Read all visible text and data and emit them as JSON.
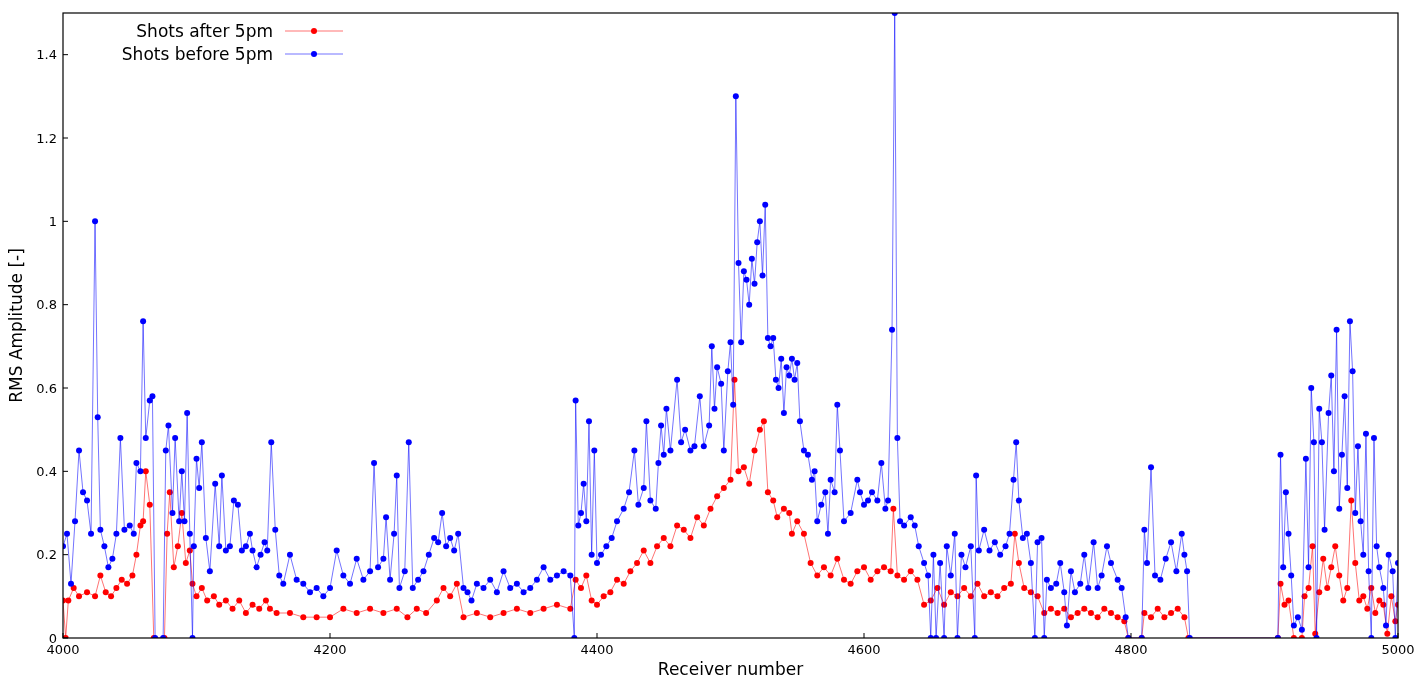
{
  "chart_data": {
    "type": "line",
    "xlabel": "Receiver number",
    "ylabel": "RMS Amplitude [-]",
    "xlim": [
      4000,
      5000
    ],
    "xticks": [
      4000,
      4200,
      4400,
      4600,
      4800,
      5000
    ],
    "ylim": [
      0,
      1.5
    ],
    "yticks": [
      0,
      0.2,
      0.4,
      0.6,
      0.8,
      1,
      1.2,
      1.4
    ],
    "grid": false,
    "legend": "top left",
    "marker": "circle",
    "line_style": "solid",
    "series": [
      {
        "name": "Shots after 5pm",
        "color": "#ff0000",
        "x": [
          4000,
          4002,
          4004,
          4008,
          4012,
          4018,
          4024,
          4028,
          4032,
          4036,
          4040,
          4044,
          4048,
          4052,
          4055,
          4058,
          4060,
          4062,
          4065,
          4068,
          4076,
          4078,
          4080,
          4083,
          4086,
          4089,
          4092,
          4095,
          4097,
          4100,
          4104,
          4108,
          4113,
          4117,
          4122,
          4127,
          4132,
          4137,
          4142,
          4147,
          4152,
          4155,
          4160,
          4170,
          4180,
          4190,
          4200,
          4210,
          4220,
          4230,
          4240,
          4250,
          4258,
          4265,
          4272,
          4280,
          4285,
          4290,
          4295,
          4300,
          4310,
          4320,
          4330,
          4340,
          4350,
          4360,
          4370,
          4380,
          4384,
          4388,
          4392,
          4396,
          4400,
          4405,
          4410,
          4415,
          4420,
          4425,
          4430,
          4435,
          4440,
          4445,
          4450,
          4455,
          4460,
          4465,
          4470,
          4475,
          4480,
          4485,
          4490,
          4495,
          4500,
          4503,
          4506,
          4510,
          4514,
          4518,
          4522,
          4525,
          4528,
          4532,
          4535,
          4540,
          4544,
          4546,
          4550,
          4555,
          4560,
          4565,
          4570,
          4575,
          4580,
          4585,
          4590,
          4595,
          4600,
          4605,
          4610,
          4615,
          4620,
          4622,
          4625,
          4630,
          4635,
          4640,
          4645,
          4650,
          4655,
          4660,
          4665,
          4670,
          4675,
          4680,
          4685,
          4690,
          4695,
          4700,
          4705,
          4710,
          4713,
          4716,
          4720,
          4725,
          4730,
          4735,
          4740,
          4745,
          4750,
          4755,
          4760,
          4765,
          4770,
          4775,
          4780,
          4785,
          4790,
          4795,
          4798,
          4808,
          4810,
          4815,
          4820,
          4825,
          4830,
          4835,
          4840,
          4843,
          4910,
          4912,
          4915,
          4918,
          4922,
          4928,
          4930,
          4933,
          4936,
          4938,
          4941,
          4944,
          4947,
          4950,
          4953,
          4956,
          4959,
          4962,
          4965,
          4968,
          4971,
          4974,
          4977,
          4980,
          4983,
          4986,
          4989,
          4992,
          4995,
          4998,
          5000
        ],
        "values": [
          0.09,
          0,
          0.09,
          0.12,
          0.1,
          0.11,
          0.1,
          0.15,
          0.11,
          0.1,
          0.12,
          0.14,
          0.13,
          0.15,
          0.2,
          0.27,
          0.28,
          0.4,
          0.32,
          0,
          0,
          0.25,
          0.35,
          0.17,
          0.22,
          0.3,
          0.18,
          0.21,
          0.13,
          0.1,
          0.12,
          0.09,
          0.1,
          0.08,
          0.09,
          0.07,
          0.09,
          0.06,
          0.08,
          0.07,
          0.09,
          0.07,
          0.06,
          0.06,
          0.05,
          0.05,
          0.05,
          0.07,
          0.06,
          0.07,
          0.06,
          0.07,
          0.05,
          0.07,
          0.06,
          0.09,
          0.12,
          0.1,
          0.13,
          0.05,
          0.06,
          0.05,
          0.06,
          0.07,
          0.06,
          0.07,
          0.08,
          0.07,
          0.14,
          0.12,
          0.15,
          0.09,
          0.08,
          0.1,
          0.11,
          0.14,
          0.13,
          0.16,
          0.18,
          0.21,
          0.18,
          0.22,
          0.24,
          0.22,
          0.27,
          0.26,
          0.24,
          0.29,
          0.27,
          0.31,
          0.34,
          0.36,
          0.38,
          0.62,
          0.4,
          0.41,
          0.37,
          0.45,
          0.5,
          0.52,
          0.35,
          0.33,
          0.29,
          0.31,
          0.3,
          0.25,
          0.28,
          0.25,
          0.18,
          0.15,
          0.17,
          0.15,
          0.19,
          0.14,
          0.13,
          0.16,
          0.17,
          0.14,
          0.16,
          0.17,
          0.16,
          0.31,
          0.15,
          0.14,
          0.16,
          0.14,
          0.08,
          0.09,
          0.12,
          0.08,
          0.11,
          0.1,
          0.12,
          0.1,
          0.13,
          0.1,
          0.11,
          0.1,
          0.12,
          0.13,
          0.25,
          0.18,
          0.12,
          0.11,
          0.1,
          0.06,
          0.07,
          0.06,
          0.07,
          0.05,
          0.06,
          0.07,
          0.06,
          0.05,
          0.07,
          0.06,
          0.05,
          0.04,
          0,
          0,
          0.06,
          0.05,
          0.07,
          0.05,
          0.06,
          0.07,
          0.05,
          0,
          0,
          0.13,
          0.08,
          0.09,
          0,
          0,
          0.1,
          0.12,
          0.22,
          0.01,
          0.11,
          0.19,
          0.12,
          0.17,
          0.22,
          0.15,
          0.09,
          0.12,
          0.33,
          0.18,
          0.09,
          0.1,
          0.07,
          0.12,
          0.06,
          0.09,
          0.08,
          0.01,
          0.1,
          0.04,
          0.08
        ]
      },
      {
        "name": "Shots before 5pm",
        "color": "#0000ff",
        "x": [
          4000,
          4003,
          4006,
          4009,
          4012,
          4015,
          4018,
          4021,
          4024,
          4026,
          4028,
          4031,
          4034,
          4037,
          4040,
          4043,
          4046,
          4050,
          4053,
          4055,
          4058,
          4060,
          4062,
          4065,
          4067,
          4069,
          4075,
          4077,
          4079,
          4082,
          4084,
          4087,
          4089,
          4091,
          4093,
          4095,
          4097,
          4098,
          4100,
          4102,
          4104,
          4107,
          4110,
          4114,
          4117,
          4119,
          4122,
          4125,
          4128,
          4131,
          4134,
          4137,
          4140,
          4142,
          4145,
          4148,
          4151,
          4153,
          4156,
          4159,
          4162,
          4165,
          4170,
          4175,
          4180,
          4185,
          4190,
          4195,
          4200,
          4205,
          4210,
          4215,
          4220,
          4225,
          4230,
          4233,
          4236,
          4240,
          4242,
          4245,
          4248,
          4250,
          4252,
          4256,
          4259,
          4262,
          4266,
          4270,
          4274,
          4278,
          4281,
          4284,
          4287,
          4290,
          4293,
          4296,
          4300,
          4303,
          4306,
          4310,
          4315,
          4320,
          4325,
          4330,
          4335,
          4340,
          4345,
          4350,
          4355,
          4360,
          4365,
          4370,
          4375,
          4380,
          4383,
          4384,
          4386,
          4388,
          4390,
          4392,
          4394,
          4396,
          4398,
          4400,
          4403,
          4407,
          4411,
          4415,
          4420,
          4424,
          4428,
          4431,
          4435,
          4437,
          4440,
          4444,
          4446,
          4448,
          4450,
          4452,
          4455,
          4460,
          4463,
          4466,
          4470,
          4473,
          4477,
          4480,
          4484,
          4486,
          4488,
          4490,
          4493,
          4495,
          4498,
          4500,
          4502,
          4504,
          4506,
          4508,
          4510,
          4512,
          4514,
          4516,
          4518,
          4520,
          4522,
          4524,
          4526,
          4528,
          4530,
          4532,
          4534,
          4536,
          4538,
          4540,
          4542,
          4544,
          4546,
          4548,
          4550,
          4552,
          4555,
          4558,
          4561,
          4563,
          4565,
          4568,
          4571,
          4573,
          4575,
          4578,
          4580,
          4582,
          4585,
          4590,
          4595,
          4597,
          4600,
          4603,
          4606,
          4610,
          4613,
          4616,
          4618,
          4621,
          4623,
          4625,
          4627,
          4630,
          4635,
          4638,
          4641,
          4645,
          4648,
          4650,
          4652,
          4654,
          4657,
          4660,
          4662,
          4665,
          4668,
          4670,
          4673,
          4676,
          4680,
          4683,
          4684,
          4686,
          4690,
          4694,
          4698,
          4702,
          4706,
          4709,
          4712,
          4714,
          4716,
          4719,
          4722,
          4725,
          4728,
          4730,
          4733,
          4735,
          4737,
          4740,
          4744,
          4747,
          4750,
          4752,
          4755,
          4758,
          4762,
          4765,
          4768,
          4772,
          4775,
          4778,
          4782,
          4785,
          4790,
          4793,
          4796,
          4798,
          4808,
          4810,
          4812,
          4815,
          4818,
          4822,
          4826,
          4830,
          4834,
          4838,
          4840,
          4842,
          4844,
          4910,
          4912,
          4914,
          4916,
          4918,
          4920,
          4922,
          4925,
          4928,
          4931,
          4933,
          4935,
          4937,
          4939,
          4941,
          4943,
          4945,
          4948,
          4950,
          4952,
          4954,
          4956,
          4958,
          4960,
          4962,
          4964,
          4966,
          4968,
          4970,
          4972,
          4974,
          4976,
          4978,
          4980,
          4982,
          4984,
          4986,
          4989,
          4991,
          4993,
          4996,
          4998,
          5000
        ],
        "values": [
          0.22,
          0.25,
          0.13,
          0.28,
          0.45,
          0.35,
          0.33,
          0.25,
          1,
          0.53,
          0.26,
          0.22,
          0.17,
          0.19,
          0.25,
          0.48,
          0.26,
          0.27,
          0.25,
          0.42,
          0.4,
          0.76,
          0.48,
          0.57,
          0.58,
          0,
          0,
          0.45,
          0.51,
          0.3,
          0.48,
          0.28,
          0.4,
          0.28,
          0.54,
          0.25,
          0,
          0.22,
          0.43,
          0.36,
          0.47,
          0.24,
          0.16,
          0.37,
          0.22,
          0.39,
          0.21,
          0.22,
          0.33,
          0.32,
          0.21,
          0.22,
          0.25,
          0.21,
          0.17,
          0.2,
          0.23,
          0.21,
          0.47,
          0.26,
          0.15,
          0.13,
          0.2,
          0.14,
          0.13,
          0.11,
          0.12,
          0.1,
          0.12,
          0.21,
          0.15,
          0.13,
          0.19,
          0.14,
          0.16,
          0.42,
          0.17,
          0.19,
          0.29,
          0.14,
          0.25,
          0.39,
          0.12,
          0.16,
          0.47,
          0.12,
          0.14,
          0.16,
          0.2,
          0.24,
          0.23,
          0.3,
          0.22,
          0.24,
          0.21,
          0.25,
          0.12,
          0.11,
          0.09,
          0.13,
          0.12,
          0.14,
          0.11,
          0.16,
          0.12,
          0.13,
          0.11,
          0.12,
          0.14,
          0.17,
          0.14,
          0.15,
          0.16,
          0.15,
          0,
          0.57,
          0.27,
          0.3,
          0.37,
          0.28,
          0.52,
          0.2,
          0.45,
          0.18,
          0.2,
          0.22,
          0.24,
          0.28,
          0.31,
          0.35,
          0.45,
          0.32,
          0.36,
          0.52,
          0.33,
          0.31,
          0.42,
          0.51,
          0.44,
          0.55,
          0.45,
          0.62,
          0.47,
          0.5,
          0.45,
          0.46,
          0.58,
          0.46,
          0.51,
          0.7,
          0.55,
          0.65,
          0.61,
          0.45,
          0.64,
          0.71,
          0.56,
          1.3,
          0.9,
          0.71,
          0.88,
          0.86,
          0.8,
          0.91,
          0.85,
          0.95,
          1,
          0.87,
          1.04,
          0.72,
          0.7,
          0.72,
          0.62,
          0.6,
          0.67,
          0.54,
          0.65,
          0.63,
          0.67,
          0.62,
          0.66,
          0.52,
          0.45,
          0.44,
          0.38,
          0.4,
          0.28,
          0.32,
          0.35,
          0.25,
          0.38,
          0.35,
          0.56,
          0.45,
          0.28,
          0.3,
          0.38,
          0.35,
          0.32,
          0.33,
          0.35,
          0.33,
          0.42,
          0.31,
          0.33,
          0.74,
          1.5,
          0.48,
          0.28,
          0.27,
          0.29,
          0.27,
          0.22,
          0.18,
          0.15,
          0,
          0.2,
          0,
          0.18,
          0,
          0.22,
          0.15,
          0.25,
          0,
          0.2,
          0.17,
          0.22,
          0,
          0.39,
          0.21,
          0.26,
          0.21,
          0.23,
          0.2,
          0.22,
          0.25,
          0.38,
          0.47,
          0.33,
          0.24,
          0.25,
          0.18,
          0,
          0.23,
          0.24,
          0,
          0.14,
          0.12,
          0.13,
          0.18,
          0.11,
          0.03,
          0.16,
          0.11,
          0.13,
          0.2,
          0.12,
          0.23,
          0.12,
          0.15,
          0.22,
          0.18,
          0.14,
          0.12,
          0.05,
          0,
          0,
          0.26,
          0.18,
          0.41,
          0.15,
          0.14,
          0.19,
          0.23,
          0.16,
          0.25,
          0.2,
          0.16,
          0,
          0,
          0.44,
          0.17,
          0.35,
          0.25,
          0.15,
          0.03,
          0.05,
          0.02,
          0.43,
          0.17,
          0.6,
          0.47,
          0,
          0.55,
          0.47,
          0.26,
          0.54,
          0.63,
          0.4,
          0.74,
          0.31,
          0.44,
          0.58,
          0.36,
          0.76,
          0.64,
          0.3,
          0.46,
          0.28,
          0.2,
          0.49,
          0.16,
          0,
          0.48,
          0.22,
          0.17,
          0.12,
          0.03,
          0.2,
          0.16,
          0,
          0.18
        ]
      }
    ]
  }
}
